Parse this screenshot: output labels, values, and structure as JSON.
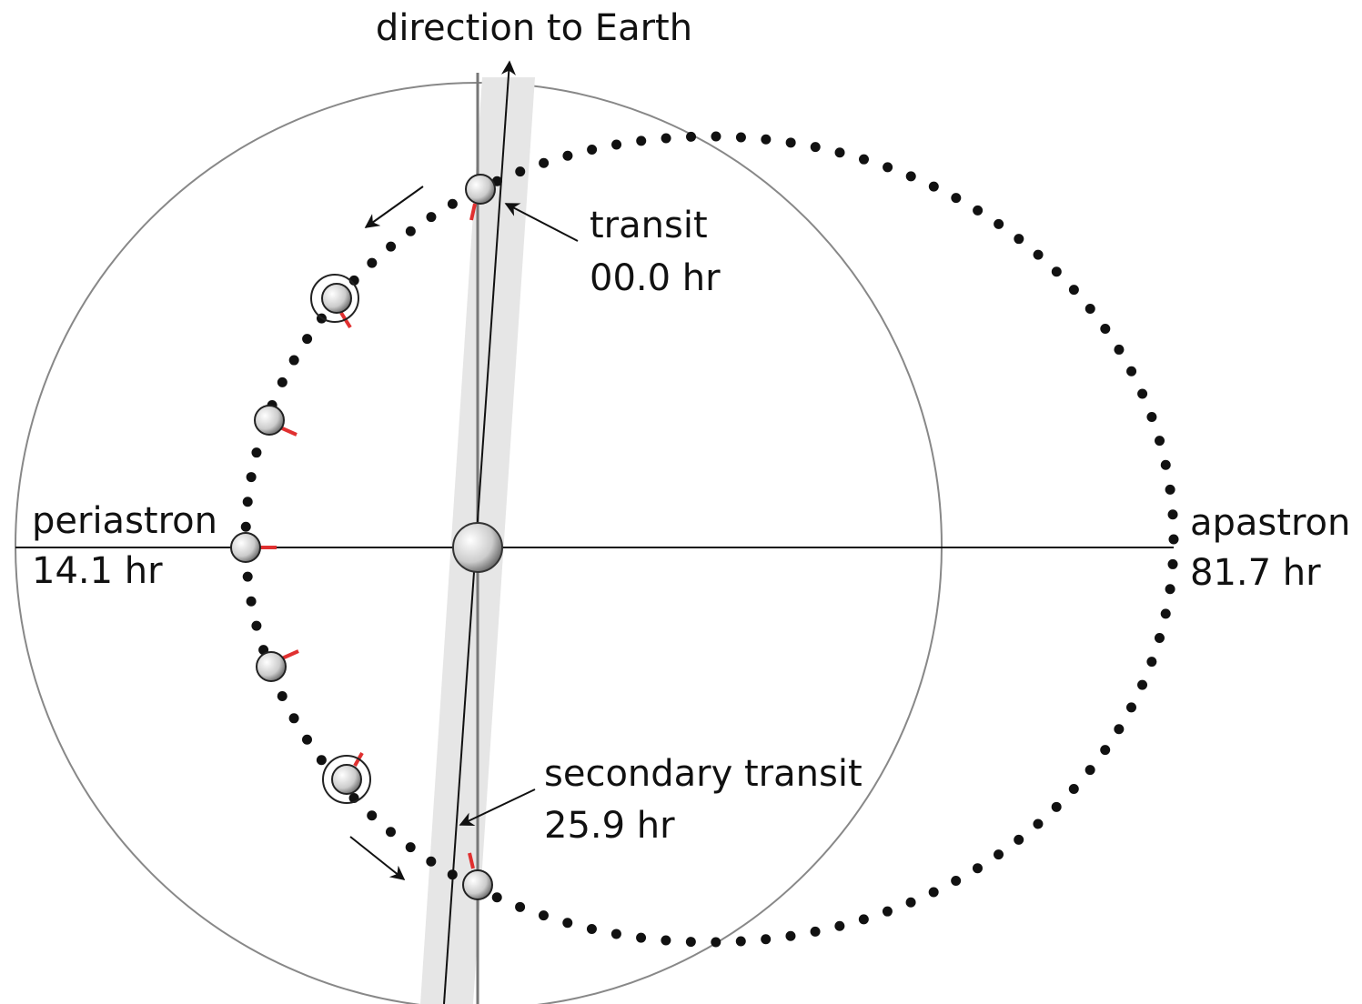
{
  "title": "direction to Earth",
  "points": [
    {
      "label": "transit",
      "time": "00.0 hr"
    },
    {
      "label": "periastron",
      "time": "14.1 hr"
    },
    {
      "label": "secondary transit",
      "time": "25.9 hr"
    },
    {
      "label": "apastron",
      "time": "81.7 hr"
    }
  ]
}
